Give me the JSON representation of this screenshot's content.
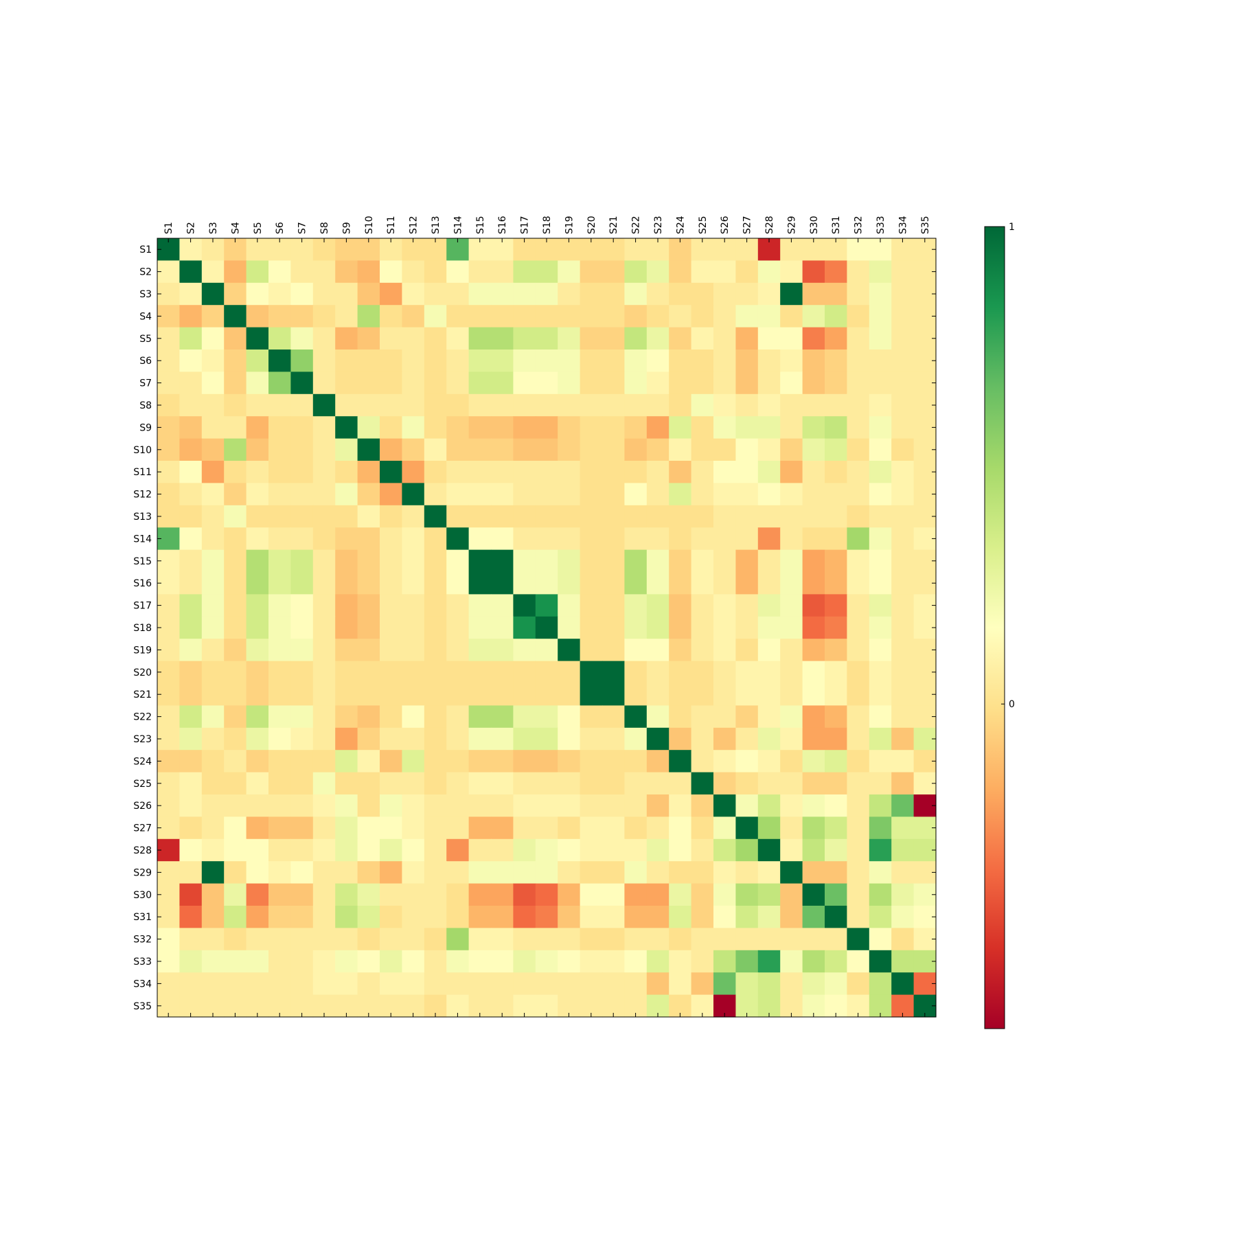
{
  "chart_data": {
    "type": "heatmap",
    "title": "",
    "xlabel": "",
    "ylabel": "",
    "x_tick_position": "top",
    "labels": [
      "S1",
      "S2",
      "S3",
      "S4",
      "S5",
      "S6",
      "S7",
      "S8",
      "S9",
      "S10",
      "S11",
      "S12",
      "S13",
      "S14",
      "S15",
      "S16",
      "S17",
      "S18",
      "S19",
      "S20",
      "S21",
      "S22",
      "S23",
      "S24",
      "S25",
      "S26",
      "S27",
      "S28",
      "S29",
      "S30",
      "S31",
      "S32",
      "S33",
      "S34",
      "S35"
    ],
    "colorscale": "RdYlGn",
    "vmin": -0.68,
    "vmax": 1,
    "colorbar": {
      "ticks": [
        {
          "value": 1,
          "label": "1"
        },
        {
          "value": 0,
          "label": "0"
        }
      ]
    },
    "matrix": [
      [
        1.0,
        0.1,
        0.05,
        -0.05,
        0.05,
        0.05,
        0.05,
        0.0,
        -0.05,
        -0.05,
        0.05,
        0.0,
        0.0,
        0.7,
        0.1,
        0.1,
        0.0,
        0.0,
        0.0,
        0.0,
        0.0,
        0.05,
        0.05,
        -0.05,
        0.05,
        0.05,
        0.05,
        -0.55,
        0.05,
        0.05,
        0.05,
        0.15,
        0.15,
        0.05,
        0.05
      ],
      [
        0.1,
        1.0,
        0.1,
        -0.15,
        0.35,
        0.15,
        0.05,
        0.05,
        -0.1,
        -0.15,
        0.15,
        0.05,
        0.0,
        0.15,
        0.05,
        0.05,
        0.35,
        0.35,
        0.2,
        -0.05,
        -0.05,
        0.35,
        0.25,
        -0.05,
        0.1,
        0.1,
        0.0,
        0.2,
        0.1,
        -0.4,
        -0.3,
        0.05,
        0.25,
        0.05,
        0.05
      ],
      [
        0.05,
        0.1,
        1.0,
        -0.05,
        0.15,
        0.1,
        0.15,
        0.05,
        0.05,
        -0.1,
        -0.2,
        0.1,
        0.05,
        0.05,
        0.2,
        0.2,
        0.2,
        0.2,
        0.05,
        0.0,
        0.0,
        0.2,
        0.05,
        0.0,
        0.0,
        0.05,
        0.05,
        0.1,
        1.0,
        -0.1,
        -0.1,
        0.05,
        0.2,
        0.05,
        0.05
      ],
      [
        -0.05,
        -0.15,
        -0.05,
        1.0,
        -0.1,
        -0.05,
        -0.05,
        0.0,
        0.05,
        0.45,
        0.0,
        -0.05,
        0.2,
        0.0,
        0.0,
        0.0,
        0.0,
        0.0,
        0.0,
        0.0,
        0.0,
        -0.05,
        0.0,
        0.05,
        0.0,
        0.05,
        0.2,
        0.2,
        0.0,
        0.25,
        0.35,
        0.0,
        0.2,
        0.05,
        0.05
      ],
      [
        0.05,
        0.35,
        0.15,
        -0.1,
        1.0,
        0.35,
        0.2,
        0.05,
        -0.15,
        -0.1,
        0.05,
        0.05,
        0.0,
        0.1,
        0.45,
        0.45,
        0.35,
        0.35,
        0.25,
        -0.05,
        -0.05,
        0.4,
        0.25,
        -0.05,
        0.1,
        0.05,
        -0.15,
        0.15,
        0.15,
        -0.3,
        -0.2,
        0.05,
        0.2,
        0.05,
        0.05
      ],
      [
        0.05,
        0.15,
        0.1,
        -0.05,
        0.35,
        1.0,
        0.55,
        0.05,
        0.0,
        0.0,
        0.0,
        0.05,
        0.0,
        0.05,
        0.3,
        0.3,
        0.2,
        0.2,
        0.2,
        0.0,
        0.0,
        0.2,
        0.15,
        0.0,
        0.0,
        0.05,
        -0.1,
        0.05,
        0.1,
        -0.1,
        -0.05,
        0.05,
        0.05,
        0.05,
        0.05
      ],
      [
        0.05,
        0.05,
        0.15,
        -0.05,
        0.2,
        0.55,
        1.0,
        0.05,
        0.0,
        0.0,
        0.0,
        0.05,
        0.0,
        0.05,
        0.35,
        0.35,
        0.15,
        0.15,
        0.2,
        0.0,
        0.0,
        0.2,
        0.1,
        0.0,
        0.0,
        0.05,
        -0.1,
        0.05,
        0.15,
        -0.1,
        -0.05,
        0.05,
        0.05,
        0.05,
        0.05
      ],
      [
        0.0,
        0.05,
        0.05,
        0.0,
        0.05,
        0.05,
        0.05,
        1.0,
        0.05,
        0.05,
        0.05,
        0.05,
        0.0,
        0.0,
        0.05,
        0.05,
        0.05,
        0.05,
        0.05,
        0.05,
        0.05,
        0.05,
        0.05,
        0.0,
        0.2,
        0.1,
        0.05,
        0.1,
        0.05,
        0.05,
        0.05,
        0.05,
        0.1,
        0.05,
        0.05
      ],
      [
        -0.05,
        -0.1,
        0.05,
        0.05,
        -0.15,
        0.0,
        0.0,
        0.05,
        1.0,
        0.25,
        0.0,
        0.2,
        0.0,
        -0.05,
        -0.1,
        -0.1,
        -0.15,
        -0.15,
        -0.05,
        0.0,
        0.0,
        -0.05,
        -0.2,
        0.3,
        0.0,
        0.2,
        0.25,
        0.25,
        0.05,
        0.35,
        0.4,
        0.05,
        0.2,
        0.05,
        0.05
      ],
      [
        -0.05,
        -0.15,
        -0.1,
        0.45,
        -0.1,
        0.0,
        0.0,
        0.05,
        0.25,
        1.0,
        -0.15,
        -0.05,
        0.1,
        -0.05,
        -0.05,
        -0.05,
        -0.1,
        -0.1,
        -0.05,
        0.0,
        0.0,
        -0.1,
        -0.05,
        0.1,
        0.0,
        0.0,
        0.15,
        0.1,
        -0.05,
        0.25,
        0.3,
        0.0,
        0.15,
        0.0,
        0.05
      ],
      [
        0.05,
        0.15,
        -0.2,
        0.0,
        0.05,
        0.0,
        0.0,
        0.05,
        0.0,
        -0.15,
        1.0,
        -0.2,
        0.0,
        0.05,
        0.05,
        0.05,
        0.05,
        0.05,
        0.05,
        0.0,
        0.0,
        0.0,
        0.05,
        -0.1,
        0.05,
        0.15,
        0.15,
        0.25,
        -0.15,
        0.05,
        0.0,
        0.05,
        0.25,
        0.1,
        0.05
      ],
      [
        0.0,
        0.05,
        0.1,
        -0.05,
        0.1,
        0.05,
        0.05,
        0.05,
        0.2,
        -0.05,
        -0.2,
        1.0,
        0.05,
        0.1,
        0.1,
        0.1,
        0.05,
        0.05,
        0.05,
        0.0,
        0.0,
        0.15,
        0.05,
        0.3,
        0.05,
        0.1,
        0.1,
        0.15,
        0.1,
        0.05,
        0.05,
        0.05,
        0.15,
        0.1,
        0.05
      ],
      [
        0.0,
        0.0,
        0.05,
        0.2,
        0.0,
        0.0,
        0.0,
        0.0,
        0.0,
        0.1,
        0.0,
        0.05,
        1.0,
        0.0,
        0.0,
        0.0,
        0.0,
        0.0,
        0.0,
        0.0,
        0.0,
        0.0,
        0.0,
        0.0,
        0.0,
        0.05,
        0.05,
        0.05,
        0.05,
        0.05,
        0.05,
        0.0,
        0.05,
        0.05,
        0.05
      ],
      [
        0.7,
        0.15,
        0.05,
        0.0,
        0.1,
        0.05,
        0.05,
        0.0,
        -0.05,
        -0.05,
        0.05,
        0.1,
        0.0,
        1.0,
        0.15,
        0.15,
        0.05,
        0.05,
        0.05,
        0.0,
        0.0,
        0.05,
        0.05,
        0.0,
        0.05,
        0.05,
        0.05,
        -0.25,
        0.05,
        0.0,
        0.0,
        0.5,
        0.2,
        0.05,
        0.1
      ],
      [
        0.1,
        0.05,
        0.2,
        0.0,
        0.45,
        0.3,
        0.35,
        0.05,
        -0.1,
        -0.05,
        0.05,
        0.1,
        0.0,
        0.15,
        1.0,
        1.0,
        0.2,
        0.2,
        0.25,
        0.0,
        0.0,
        0.45,
        0.2,
        -0.05,
        0.1,
        0.05,
        -0.15,
        0.05,
        0.2,
        -0.2,
        -0.15,
        0.1,
        0.15,
        0.05,
        0.05
      ],
      [
        0.1,
        0.05,
        0.2,
        0.0,
        0.45,
        0.3,
        0.35,
        0.05,
        -0.1,
        -0.05,
        0.05,
        0.1,
        0.0,
        0.15,
        1.0,
        1.0,
        0.2,
        0.2,
        0.25,
        0.0,
        0.0,
        0.45,
        0.2,
        -0.05,
        0.1,
        0.05,
        -0.15,
        0.05,
        0.2,
        -0.2,
        -0.15,
        0.1,
        0.15,
        0.05,
        0.05
      ],
      [
        0.05,
        0.35,
        0.2,
        0.0,
        0.35,
        0.2,
        0.15,
        0.05,
        -0.15,
        -0.1,
        0.05,
        0.05,
        0.0,
        0.05,
        0.2,
        0.2,
        1.0,
        0.85,
        0.2,
        0.0,
        0.0,
        0.25,
        0.3,
        -0.1,
        0.05,
        0.1,
        0.05,
        0.25,
        0.2,
        -0.4,
        -0.35,
        0.05,
        0.25,
        0.05,
        0.1
      ],
      [
        0.05,
        0.35,
        0.2,
        0.0,
        0.35,
        0.2,
        0.15,
        0.05,
        -0.15,
        -0.1,
        0.05,
        0.05,
        0.0,
        0.05,
        0.2,
        0.2,
        0.85,
        1.0,
        0.2,
        0.0,
        0.0,
        0.25,
        0.3,
        -0.1,
        0.05,
        0.1,
        0.05,
        0.2,
        0.2,
        -0.35,
        -0.3,
        0.05,
        0.2,
        0.05,
        0.1
      ],
      [
        0.05,
        0.2,
        0.05,
        -0.05,
        0.25,
        0.2,
        0.2,
        0.05,
        -0.05,
        -0.05,
        0.05,
        0.05,
        0.0,
        0.05,
        0.25,
        0.25,
        0.2,
        0.2,
        1.0,
        0.0,
        0.0,
        0.15,
        0.15,
        -0.05,
        0.05,
        0.1,
        0.0,
        0.15,
        0.05,
        -0.15,
        -0.1,
        0.05,
        0.15,
        0.05,
        0.05
      ],
      [
        0.0,
        -0.05,
        0.0,
        0.0,
        -0.05,
        0.0,
        0.0,
        0.05,
        0.0,
        0.0,
        0.0,
        0.0,
        0.0,
        0.0,
        0.0,
        0.0,
        0.0,
        0.0,
        0.0,
        1.0,
        1.0,
        0.0,
        0.05,
        0.0,
        0.0,
        0.05,
        0.1,
        0.1,
        0.05,
        0.15,
        0.1,
        0.0,
        0.1,
        0.05,
        0.05
      ],
      [
        0.0,
        -0.05,
        0.0,
        0.0,
        -0.05,
        0.0,
        0.0,
        0.05,
        0.0,
        0.0,
        0.0,
        0.0,
        0.0,
        0.0,
        0.0,
        0.0,
        0.0,
        0.0,
        0.0,
        1.0,
        1.0,
        0.0,
        0.05,
        0.0,
        0.0,
        0.05,
        0.1,
        0.1,
        0.05,
        0.15,
        0.1,
        0.0,
        0.1,
        0.05,
        0.05
      ],
      [
        0.05,
        0.35,
        0.2,
        -0.05,
        0.4,
        0.2,
        0.2,
        0.05,
        -0.05,
        -0.1,
        0.0,
        0.15,
        0.0,
        0.05,
        0.45,
        0.45,
        0.25,
        0.25,
        0.15,
        0.0,
        0.0,
        1.0,
        0.2,
        0.0,
        0.05,
        0.05,
        -0.05,
        0.1,
        0.2,
        -0.2,
        -0.15,
        0.05,
        0.15,
        0.05,
        0.05
      ],
      [
        0.05,
        0.25,
        0.05,
        0.0,
        0.25,
        0.15,
        0.1,
        0.05,
        -0.2,
        -0.05,
        0.05,
        0.05,
        0.0,
        0.05,
        0.2,
        0.2,
        0.3,
        0.3,
        0.15,
        0.05,
        0.05,
        0.2,
        1.0,
        -0.1,
        0.05,
        -0.1,
        0.05,
        0.25,
        0.1,
        -0.2,
        -0.2,
        0.05,
        0.3,
        -0.1,
        0.3
      ],
      [
        -0.05,
        -0.05,
        0.0,
        0.05,
        -0.05,
        0.0,
        0.0,
        0.0,
        0.3,
        0.1,
        -0.1,
        0.3,
        0.0,
        0.0,
        -0.05,
        -0.05,
        -0.1,
        -0.1,
        -0.05,
        0.0,
        0.0,
        0.0,
        -0.1,
        1.0,
        0.05,
        0.1,
        0.15,
        0.1,
        0.0,
        0.25,
        0.3,
        0.0,
        0.1,
        0.1,
        0.0
      ],
      [
        0.05,
        0.1,
        0.0,
        0.0,
        0.1,
        0.0,
        0.0,
        0.2,
        0.0,
        0.0,
        0.05,
        0.05,
        0.0,
        0.05,
        0.1,
        0.1,
        0.05,
        0.05,
        0.05,
        0.0,
        0.0,
        0.05,
        0.05,
        0.05,
        1.0,
        -0.05,
        0.0,
        0.05,
        0.05,
        -0.05,
        -0.05,
        0.05,
        0.05,
        -0.1,
        0.1
      ],
      [
        0.05,
        0.1,
        0.05,
        0.05,
        0.05,
        0.05,
        0.05,
        0.1,
        0.2,
        0.0,
        0.2,
        0.1,
        0.05,
        0.05,
        0.05,
        0.05,
        0.1,
        0.1,
        0.1,
        0.05,
        0.05,
        0.05,
        -0.1,
        0.1,
        -0.05,
        1.0,
        0.2,
        0.35,
        0.1,
        0.2,
        0.15,
        0.05,
        0.4,
        0.65,
        -0.68
      ],
      [
        0.05,
        0.0,
        0.05,
        0.15,
        -0.15,
        -0.1,
        -0.1,
        0.05,
        0.25,
        0.15,
        0.15,
        0.1,
        0.05,
        0.05,
        -0.15,
        -0.15,
        0.05,
        0.05,
        0.0,
        0.1,
        0.1,
        0.0,
        0.05,
        0.15,
        0.0,
        0.2,
        1.0,
        0.5,
        0.05,
        0.45,
        0.35,
        0.05,
        0.6,
        0.3,
        0.3
      ],
      [
        -0.55,
        0.15,
        0.1,
        0.15,
        0.15,
        0.05,
        0.05,
        0.1,
        0.25,
        0.15,
        0.25,
        0.15,
        0.05,
        -0.25,
        0.05,
        0.05,
        0.25,
        0.2,
        0.15,
        0.1,
        0.1,
        0.1,
        0.25,
        0.15,
        0.05,
        0.35,
        0.5,
        1.0,
        0.1,
        0.4,
        0.25,
        0.05,
        0.8,
        0.35,
        0.35
      ],
      [
        0.05,
        0.05,
        1.0,
        0.0,
        0.15,
        0.1,
        0.15,
        0.05,
        0.05,
        -0.05,
        -0.15,
        0.1,
        0.05,
        0.05,
        0.2,
        0.2,
        0.2,
        0.2,
        0.05,
        0.0,
        0.0,
        0.2,
        0.05,
        0.0,
        0.0,
        0.1,
        0.05,
        0.1,
        1.0,
        -0.1,
        -0.1,
        0.05,
        0.2,
        0.05,
        0.05
      ],
      [
        0.05,
        -0.45,
        -0.1,
        0.25,
        -0.3,
        -0.1,
        -0.1,
        0.05,
        0.35,
        0.25,
        0.05,
        0.05,
        0.05,
        0.0,
        -0.2,
        -0.2,
        -0.4,
        -0.35,
        -0.15,
        0.15,
        0.15,
        -0.2,
        -0.2,
        0.25,
        -0.05,
        0.2,
        0.45,
        0.4,
        -0.1,
        1.0,
        0.65,
        0.05,
        0.45,
        0.25,
        0.2
      ],
      [
        0.05,
        -0.35,
        -0.1,
        0.35,
        -0.2,
        -0.05,
        -0.05,
        0.05,
        0.4,
        0.3,
        0.0,
        0.05,
        0.05,
        0.0,
        -0.15,
        -0.15,
        -0.35,
        -0.3,
        -0.1,
        0.1,
        0.1,
        -0.15,
        -0.15,
        0.3,
        -0.05,
        0.15,
        0.35,
        0.25,
        -0.1,
        0.65,
        1.0,
        0.05,
        0.35,
        0.2,
        0.15
      ],
      [
        0.15,
        0.05,
        0.05,
        0.0,
        0.05,
        0.05,
        0.05,
        0.05,
        0.05,
        0.0,
        0.05,
        0.05,
        0.0,
        0.5,
        0.1,
        0.1,
        0.05,
        0.05,
        0.05,
        0.0,
        0.0,
        0.05,
        0.05,
        0.0,
        0.05,
        0.05,
        0.05,
        0.05,
        0.05,
        0.05,
        0.05,
        1.0,
        0.15,
        0.0,
        0.1
      ],
      [
        0.15,
        0.25,
        0.2,
        0.2,
        0.2,
        0.05,
        0.05,
        0.1,
        0.2,
        0.15,
        0.25,
        0.15,
        0.05,
        0.2,
        0.15,
        0.15,
        0.25,
        0.2,
        0.15,
        0.1,
        0.1,
        0.15,
        0.3,
        0.1,
        0.05,
        0.4,
        0.6,
        0.8,
        0.2,
        0.45,
        0.35,
        0.15,
        1.0,
        0.4,
        0.4
      ],
      [
        0.05,
        0.05,
        0.05,
        0.05,
        0.05,
        0.05,
        0.05,
        0.1,
        0.1,
        0.05,
        0.1,
        0.1,
        0.05,
        0.05,
        0.05,
        0.05,
        0.05,
        0.05,
        0.05,
        0.05,
        0.05,
        0.05,
        -0.1,
        0.1,
        -0.1,
        0.65,
        0.3,
        0.35,
        0.05,
        0.25,
        0.2,
        0.0,
        0.4,
        1.0,
        -0.35
      ],
      [
        0.05,
        0.05,
        0.05,
        0.05,
        0.05,
        0.05,
        0.05,
        0.05,
        0.05,
        0.05,
        0.05,
        0.05,
        0.0,
        0.1,
        0.05,
        0.05,
        0.1,
        0.1,
        0.05,
        0.05,
        0.05,
        0.05,
        0.3,
        0.0,
        0.1,
        -0.68,
        0.3,
        0.35,
        0.05,
        0.2,
        0.15,
        0.1,
        0.4,
        -0.35,
        1.0
      ]
    ]
  }
}
